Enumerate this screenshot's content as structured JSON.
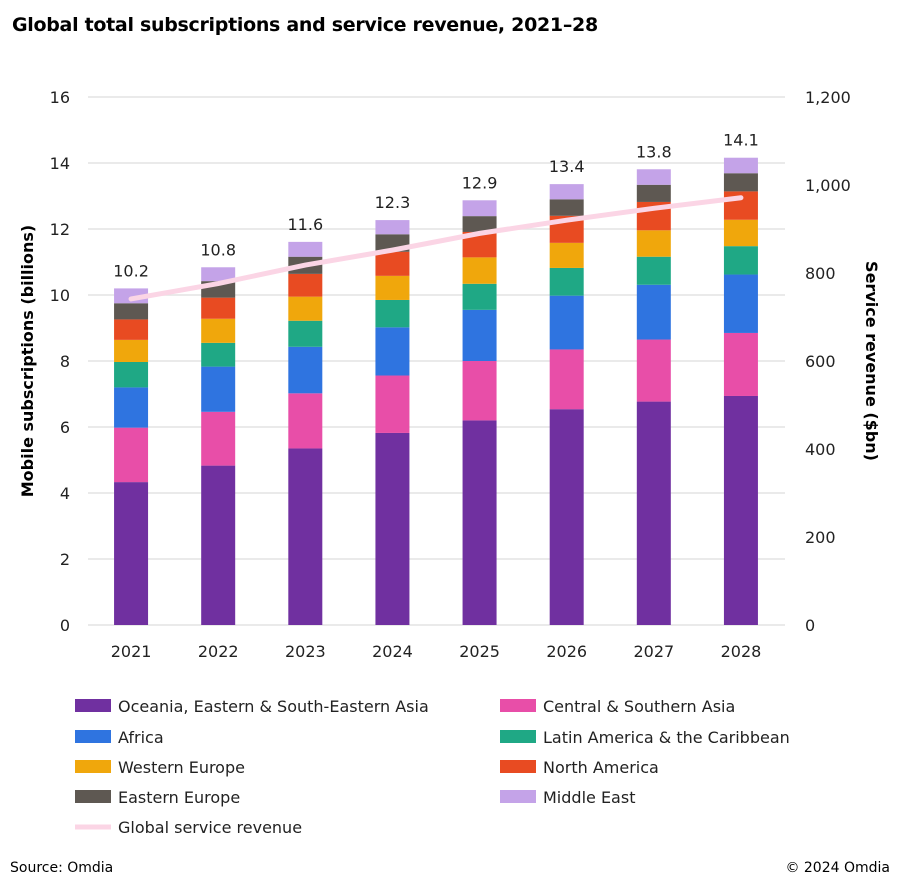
{
  "chart_data": {
    "type": "bar",
    "stacked": true,
    "title": "Global total subscriptions and service revenue, 2021–28",
    "ylabel": "Mobile subscriptions (billions)",
    "y2label": "Service revenue ($bn)",
    "ylim": [
      0,
      16
    ],
    "yticks": [
      "0",
      "2",
      "4",
      "6",
      "8",
      "10",
      "12",
      "14",
      "16"
    ],
    "y2lim": [
      0,
      1200
    ],
    "y2ticks": [
      "0",
      "200",
      "400",
      "600",
      "800",
      "1,000",
      "1,200"
    ],
    "grid": true,
    "legend": "bottom",
    "categories": [
      "2021",
      "2022",
      "2023",
      "2024",
      "2025",
      "2026",
      "2027",
      "2028"
    ],
    "totals": [
      "10.2",
      "10.8",
      "11.6",
      "12.3",
      "12.9",
      "13.4",
      "13.8",
      "14.1"
    ],
    "series": [
      {
        "name": "Oceania, Eastern & South-Eastern Asia",
        "color": "#7030a0",
        "values": [
          4.33,
          4.83,
          5.35,
          5.82,
          6.2,
          6.54,
          6.77,
          6.94
        ]
      },
      {
        "name": "Central & Southern Asia",
        "color": "#e84ea8",
        "values": [
          1.65,
          1.63,
          1.67,
          1.74,
          1.8,
          1.81,
          1.88,
          1.91
        ]
      },
      {
        "name": "Africa",
        "color": "#2f74e0",
        "values": [
          1.22,
          1.37,
          1.41,
          1.46,
          1.55,
          1.63,
          1.66,
          1.77
        ]
      },
      {
        "name": "Latin America & the Caribbean",
        "color": "#1fa885",
        "values": [
          0.77,
          0.72,
          0.79,
          0.83,
          0.79,
          0.84,
          0.85,
          0.86
        ]
      },
      {
        "name": "Western Europe",
        "color": "#f0a70c",
        "values": [
          0.67,
          0.73,
          0.73,
          0.73,
          0.8,
          0.76,
          0.8,
          0.8
        ]
      },
      {
        "name": "North America",
        "color": "#e84b22",
        "values": [
          0.62,
          0.64,
          0.69,
          0.73,
          0.77,
          0.82,
          0.86,
          0.86
        ]
      },
      {
        "name": "Eastern Europe",
        "color": "#5e5852",
        "values": [
          0.49,
          0.5,
          0.52,
          0.53,
          0.48,
          0.5,
          0.52,
          0.55
        ]
      },
      {
        "name": "Middle East",
        "color": "#c4a3e8",
        "values": [
          0.45,
          0.42,
          0.45,
          0.43,
          0.48,
          0.46,
          0.47,
          0.47
        ]
      }
    ],
    "line_series": {
      "name": "Global service revenue",
      "color": "#fbd5e5",
      "axis": "right",
      "values": [
        741,
        776,
        818,
        852,
        890,
        920,
        947,
        971
      ]
    }
  },
  "footer": {
    "source": "Source: Omdia",
    "copyright": "© 2024 Omdia"
  }
}
